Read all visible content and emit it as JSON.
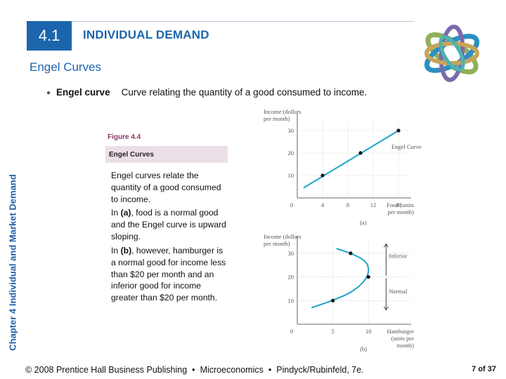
{
  "side_label": "Chapter 4  Individual and Market Demand",
  "section": {
    "number": "4.1",
    "title": "INDIVIDUAL DEMAND"
  },
  "subtitle": "Engel Curves",
  "definition": {
    "term": "Engel curve",
    "text": "Curve relating the quantity of a good consumed to income."
  },
  "figure": {
    "label": "Figure 4.4",
    "title": "Engel Curves",
    "caption": [
      {
        "lead": "Engel curves relate the quantity of a good consumed to income.",
        "bold": "",
        "rest": ""
      },
      {
        "lead": "In ",
        "bold": "(a)",
        "rest": ", food is a normal good and the Engel curve is upward sloping."
      },
      {
        "lead": "In ",
        "bold": "(b)",
        "rest": ", however, hamburger is a normal good for income less than $20 per month and an inferior good for income greater than $20 per month."
      }
    ]
  },
  "chart_data": [
    {
      "type": "line",
      "panel": "(a)",
      "ylabel": "Income (dollars per month)",
      "xlabel": "Food (units per month)",
      "xticks": [
        "0",
        "4",
        "8",
        "12",
        "16"
      ],
      "yticks": [
        "10",
        "20",
        "30"
      ],
      "xlim": [
        0,
        18
      ],
      "ylim": [
        0,
        35
      ],
      "series": [
        {
          "name": "Engel Curve",
          "x": [
            1,
            16
          ],
          "y": [
            4.5,
            30
          ]
        }
      ],
      "points": [
        {
          "x": 4,
          "y": 10
        },
        {
          "x": 10,
          "y": 20
        },
        {
          "x": 16,
          "y": 30
        }
      ],
      "color": "#1fa3c7"
    },
    {
      "type": "line",
      "panel": "(b)",
      "ylabel": "Income (dollars per month)",
      "xlabel": "Hamburger (units per month)",
      "xticks": [
        "0",
        "5",
        "10"
      ],
      "yticks": [
        "10",
        "20",
        "30"
      ],
      "xlim": [
        0,
        16
      ],
      "ylim": [
        0,
        35
      ],
      "annotations": [
        "Inferior",
        "Normal"
      ],
      "series": [
        {
          "name": "",
          "x": [
            2,
            5,
            8,
            10,
            10,
            8,
            5.5
          ],
          "y": [
            7,
            10,
            14,
            20,
            26,
            29.5,
            32
          ]
        }
      ],
      "points": [
        {
          "x": 5,
          "y": 10
        },
        {
          "x": 10,
          "y": 20
        },
        {
          "x": 7.5,
          "y": 30
        }
      ],
      "color": "#1fa3c7"
    }
  ],
  "footer": {
    "copyright": "© 2008 Prentice Hall Business Publishing",
    "book": "Microeconomics",
    "authors": "Pindyck/Rubinfeld, 7e.",
    "separator": "•",
    "page": "7 of 37"
  }
}
